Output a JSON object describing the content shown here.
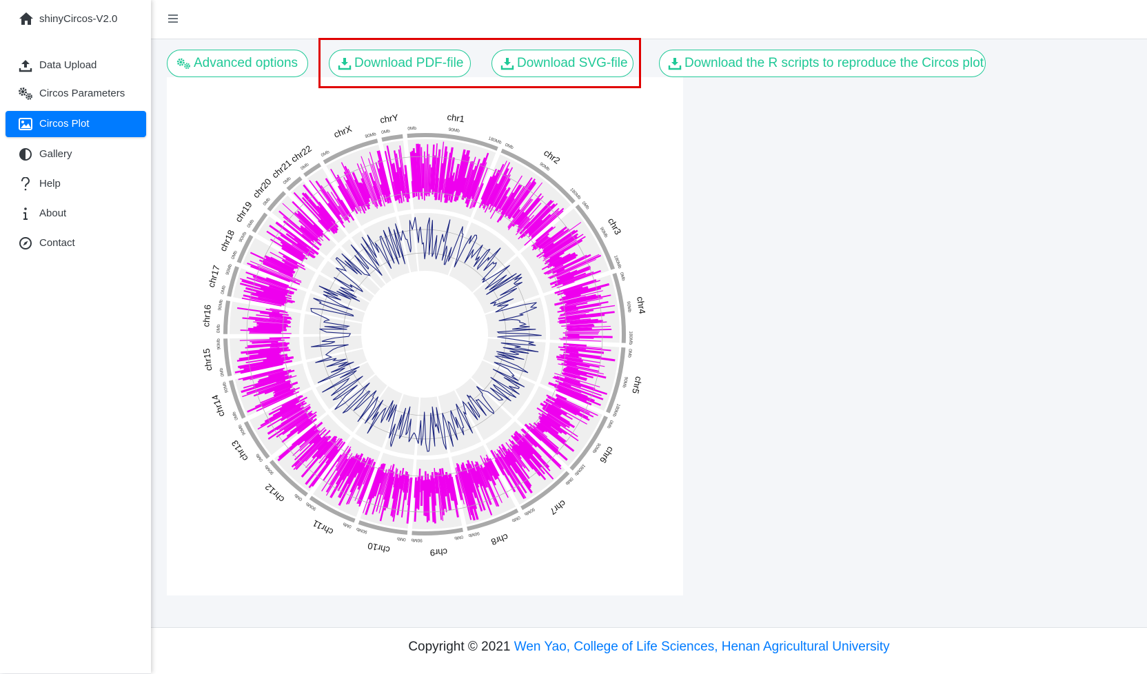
{
  "sidebar": {
    "brand": {
      "title": "shinyCircos-V2.0",
      "icon": "home-icon"
    },
    "items": [
      {
        "label": "Data Upload",
        "icon": "upload-icon",
        "active": false
      },
      {
        "label": "Circos Parameters",
        "icon": "gears-icon",
        "active": false
      },
      {
        "label": "Circos Plot",
        "icon": "image-icon",
        "active": true
      },
      {
        "label": "Gallery",
        "icon": "contrast-icon",
        "active": false
      },
      {
        "label": "Help",
        "icon": "question-icon",
        "active": false
      },
      {
        "label": "About",
        "icon": "info-icon",
        "active": false
      },
      {
        "label": "Contact",
        "icon": "compass-icon",
        "active": false
      }
    ]
  },
  "header": {
    "menu_icon": "hamburger-icon"
  },
  "toolbar": {
    "advanced_options": "Advanced options",
    "download_pdf": "Download PDF-file",
    "download_svg": "Download SVG-file",
    "download_r_scripts": "Download the R scripts to reproduce the Circos plot"
  },
  "colors": {
    "accent": "#20c997",
    "active_nav": "#007bff",
    "highlight_box": "#e00000",
    "bar_track": "#ee00ee",
    "line_track": "#1a237e"
  },
  "plot": {
    "chromosomes": [
      "chr1",
      "chr2",
      "chr3",
      "chr4",
      "chr5",
      "chr6",
      "chr7",
      "chr8",
      "chr9",
      "chr10",
      "chr11",
      "chr12",
      "chr13",
      "chr14",
      "chr15",
      "chr16",
      "chr17",
      "chr18",
      "chr19",
      "chr20",
      "chr21",
      "chr22",
      "chrX",
      "chrY"
    ],
    "tick_labels": [
      "0Mb",
      "90Mb",
      "180Mb"
    ]
  },
  "footer": {
    "copyright": "Copyright © 2021 ",
    "link_text": "Wen Yao, College of Life Sciences, Henan Agricultural University"
  }
}
